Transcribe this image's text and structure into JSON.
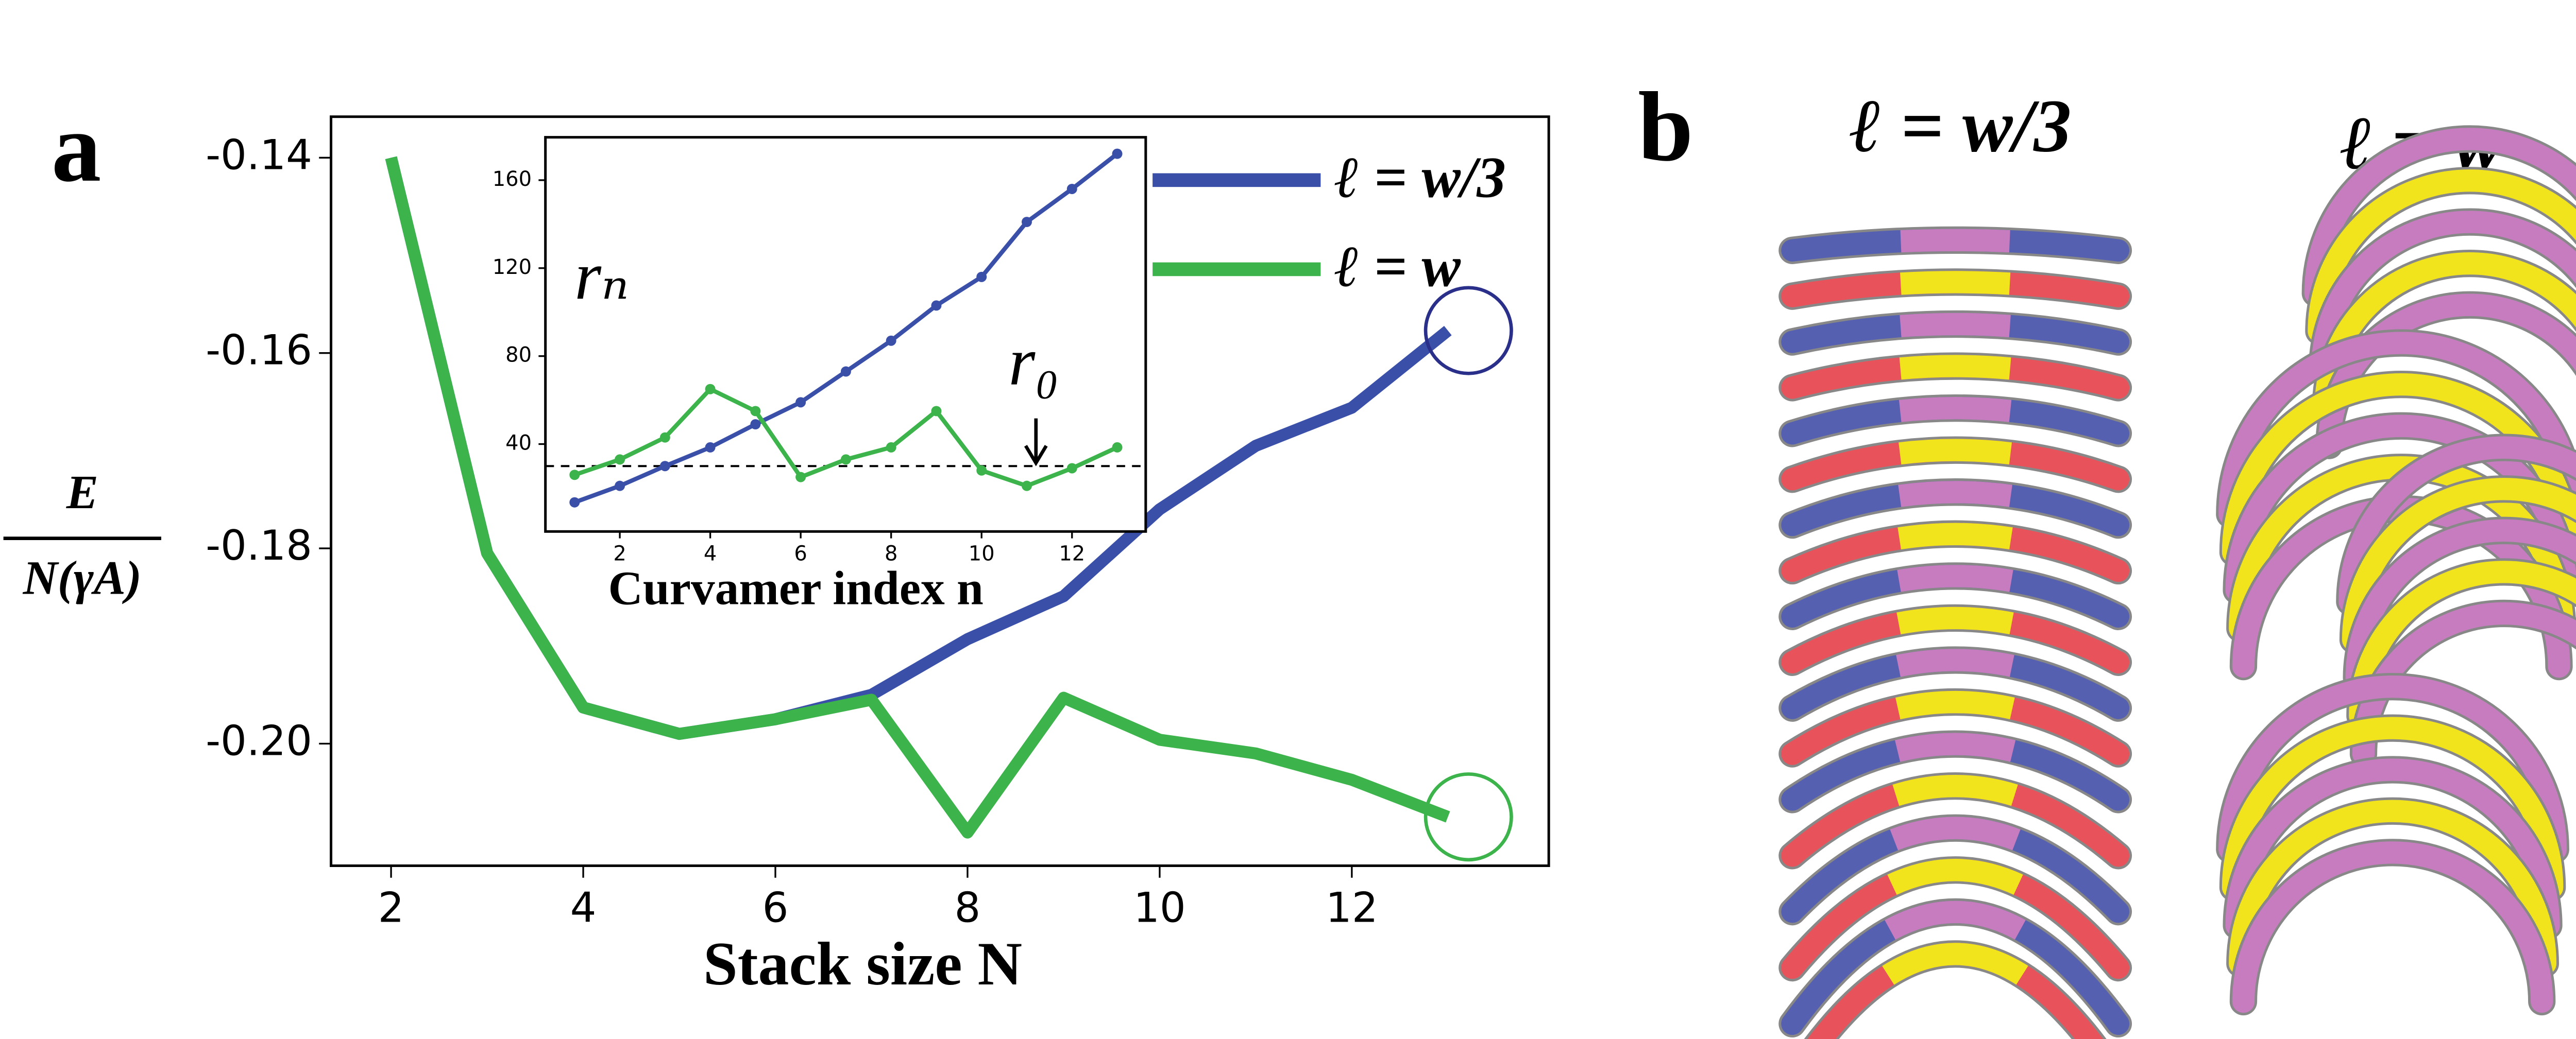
{
  "panel_a": {
    "label": "a"
  },
  "chart_data": [
    {
      "type": "line",
      "xlabel": "Stack size N",
      "ylabel_numerator": "E",
      "ylabel_denominator": "N(γA)",
      "x": [
        2,
        3,
        4,
        5,
        6,
        7,
        8,
        9,
        10,
        11,
        12,
        13
      ],
      "series": [
        {
          "name": "ℓ = w/3",
          "color": "#3a4fa8",
          "values": [
            -0.14,
            -0.1805,
            -0.1963,
            -0.199,
            -0.1975,
            -0.195,
            -0.1893,
            -0.1849,
            -0.176,
            -0.1695,
            -0.1656,
            -0.1577
          ]
        },
        {
          "name": "ℓ = w",
          "color": "#3cb44b",
          "values": [
            -0.14,
            -0.1805,
            -0.1963,
            -0.199,
            -0.1975,
            -0.1955,
            -0.2091,
            -0.1953,
            -0.1996,
            -0.201,
            -0.2037,
            -0.2075
          ]
        }
      ],
      "xlim": [
        1.375,
        14.05
      ],
      "ylim": [
        -0.2125,
        -0.1358
      ],
      "xticks": [
        2,
        4,
        6,
        8,
        10,
        12
      ],
      "yticks": [
        -0.14,
        -0.16,
        -0.18,
        {
          "value": -0.2,
          "label": "-0.20"
        }
      ],
      "endpoint_circles": true
    },
    {
      "type": "line",
      "xlabel": "Curvamer index n",
      "ylabel": "rₙ",
      "annotation": "r₀",
      "x": [
        1,
        2,
        3,
        4,
        5,
        6,
        7,
        8,
        9,
        10,
        11,
        12,
        13
      ],
      "series": [
        {
          "color": "#3a4fa8",
          "values": [
            13.5,
            21,
            30,
            38.5,
            49,
            59,
            73,
            87,
            103,
            116,
            141,
            156,
            172
          ]
        },
        {
          "color": "#3cb44b",
          "values": [
            26,
            33,
            43,
            65,
            55,
            25,
            33,
            38.5,
            55,
            28,
            21,
            29,
            38.5
          ]
        }
      ],
      "xlim": [
        0.355,
        13.63
      ],
      "ylim": [
        0.25,
        179.5
      ],
      "xticks": [
        2,
        4,
        6,
        8,
        10,
        12
      ],
      "yticks": [
        40,
        80,
        120,
        160
      ],
      "hline": 30,
      "markers": true
    }
  ],
  "panel_b": {
    "label": "b",
    "left_title": "ℓ = w/3",
    "right_title": "ℓ = w"
  }
}
